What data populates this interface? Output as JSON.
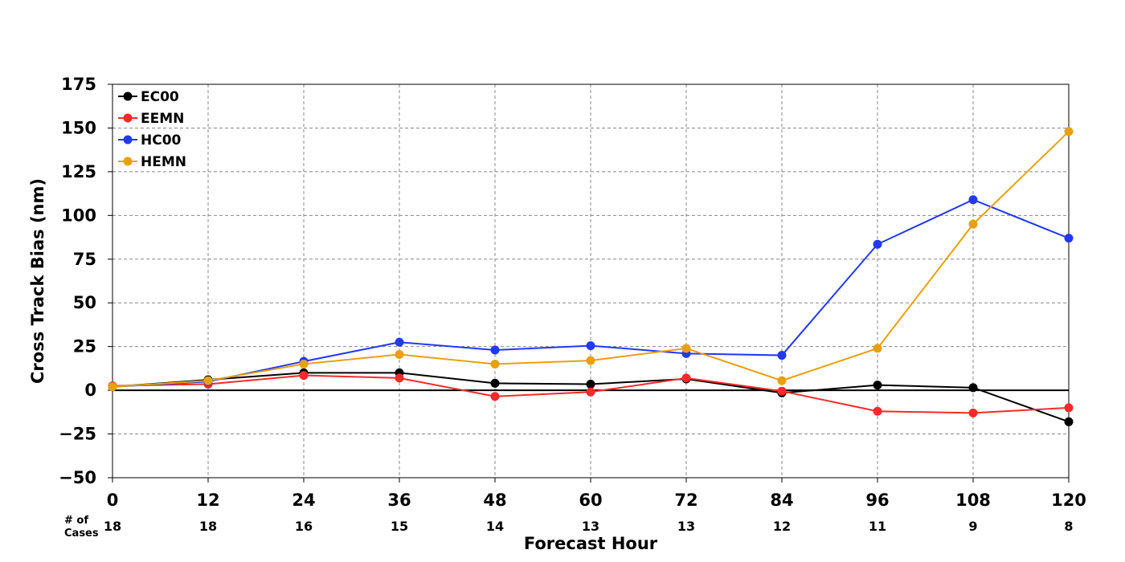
{
  "chart_data": {
    "type": "line",
    "title": "",
    "xlabel": "Forecast Hour",
    "ylabel": "Cross Track Bias (nm)",
    "x": [
      0,
      12,
      24,
      36,
      48,
      60,
      72,
      84,
      96,
      108,
      120
    ],
    "xlim": [
      0,
      120
    ],
    "ylim": [
      -50,
      175
    ],
    "yticks": [
      -50,
      -25,
      0,
      25,
      50,
      75,
      100,
      125,
      150,
      175
    ],
    "ytick_labels": [
      "−50",
      "−25",
      "0",
      "25",
      "50",
      "75",
      "100",
      "125",
      "150",
      "175"
    ],
    "xtick_labels": [
      "0",
      "12",
      "24",
      "36",
      "48",
      "60",
      "72",
      "84",
      "96",
      "108",
      "120"
    ],
    "grid": true,
    "legend_position": "top-left",
    "cases_title_line1": "# of",
    "cases_title_line2": "Cases",
    "cases": [
      "18",
      "18",
      "16",
      "15",
      "14",
      "13",
      "13",
      "12",
      "11",
      "9",
      "8"
    ],
    "series": [
      {
        "name": "EC00",
        "color": "#000000",
        "values": [
          2,
          6,
          10,
          10,
          4,
          3.5,
          6.5,
          -1.5,
          3,
          1.5,
          -18
        ]
      },
      {
        "name": "EEMN",
        "color": "#f52a2a",
        "values": [
          2.5,
          3.5,
          8.5,
          7,
          -3.5,
          -1,
          7,
          -0.5,
          -12,
          -13,
          -10
        ]
      },
      {
        "name": "HC00",
        "color": "#2238f5",
        "values": [
          2,
          5,
          16.5,
          27.5,
          23,
          25.5,
          21,
          20,
          83.5,
          109,
          87
        ]
      },
      {
        "name": "HEMN",
        "color": "#e9a010",
        "values": [
          2,
          5.5,
          15,
          20.5,
          15,
          17,
          24,
          5.5,
          24,
          95,
          148
        ]
      }
    ]
  }
}
